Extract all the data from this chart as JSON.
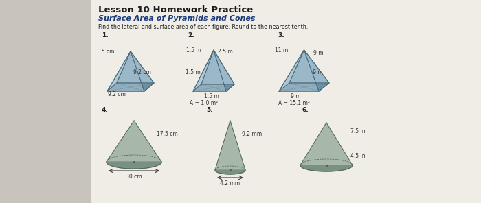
{
  "title": "Lesson 10 Homework Practice",
  "subtitle": "Surface Area of Pyramids and Cones",
  "instruction": "Find the lateral and surface area of each figure. Round to the nearest tenth.",
  "outer_bg": "#c8c4bc",
  "inner_bg": "#f0ede6",
  "py_face_front": "#8eafc0",
  "py_face_right": "#6a90a8",
  "py_face_left": "#b0c8d5",
  "py_face_back": "#9ab8c8",
  "py_edge": "#4a6a7a",
  "cone_body": "#a8b8a8",
  "cone_base": "#7a9080",
  "cone_edge": "#4a6050",
  "title_color": "#1a1a1a",
  "subtitle_color": "#1a3a7a",
  "text_color": "#222222",
  "dim_color": "#333333",
  "arrow_color": "#333333"
}
